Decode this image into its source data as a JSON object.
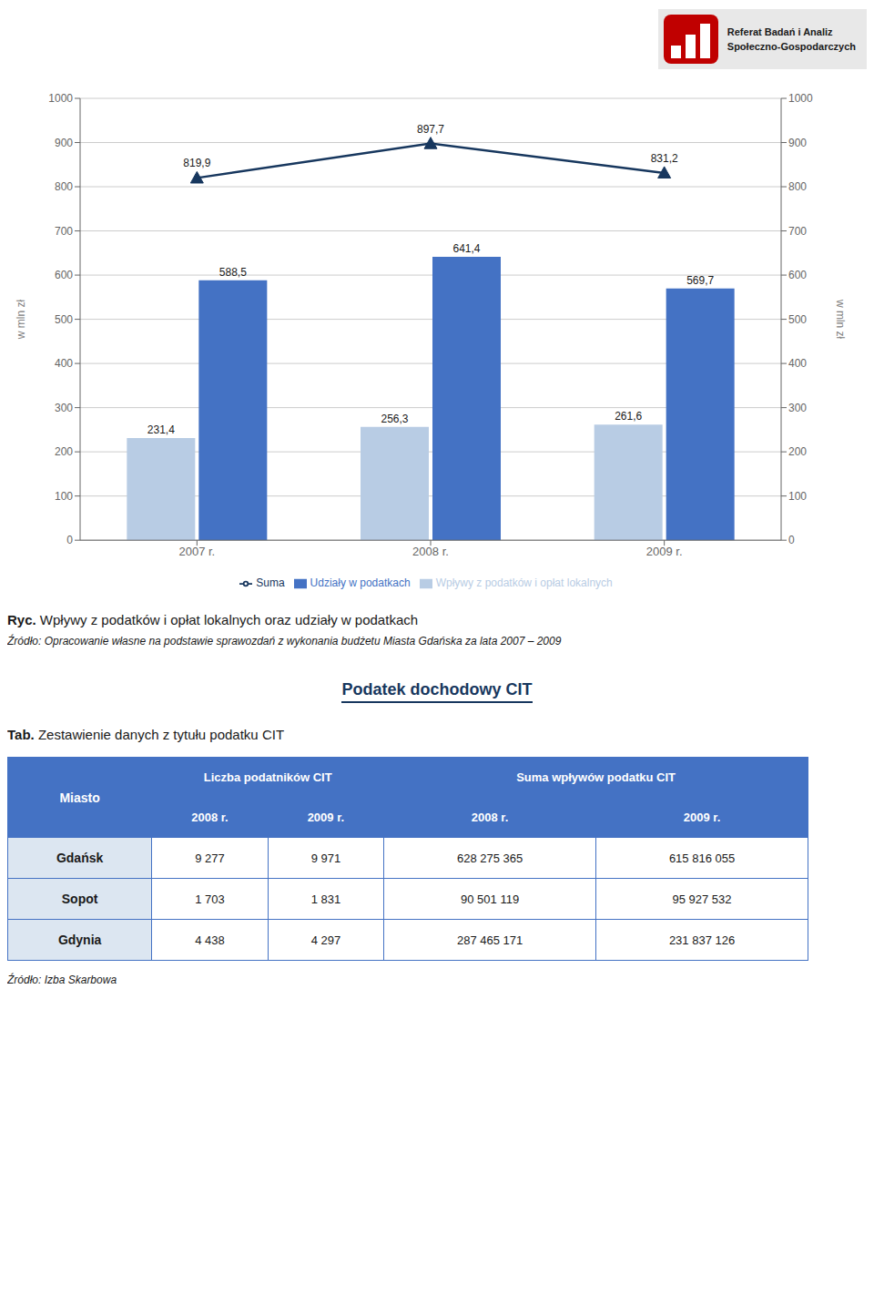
{
  "chart_data": {
    "type": "bar",
    "categories": [
      "2007 r.",
      "2008 r.",
      "2009 r."
    ],
    "series": [
      {
        "name": "Wpływy z podatków i opłat lokalnych",
        "type": "bar",
        "color": "#b8cce4",
        "values": [
          231.4,
          256.3,
          261.6
        ],
        "value_labels": [
          "231,4",
          "256,3",
          "261,6"
        ]
      },
      {
        "name": "Udziały w podatkach",
        "type": "bar",
        "color": "#4472c4",
        "values": [
          588.5,
          641.4,
          569.7
        ],
        "value_labels": [
          "588,5",
          "641,4",
          "569,7"
        ]
      },
      {
        "name": "Suma",
        "type": "line",
        "axis": "y2",
        "marker": "triangle",
        "color": "#17375e",
        "values": [
          819.9,
          897.7,
          831.2
        ],
        "value_labels": [
          "819,9",
          "897,7",
          "831,2"
        ]
      }
    ],
    "ylabel": "w mln zł",
    "y2label": "w mln zł",
    "ylim": [
      0,
      1000
    ],
    "yticks": [
      0,
      100,
      200,
      300,
      400,
      500,
      600,
      700,
      800,
      900,
      1000
    ],
    "y2lim": [
      0,
      1000
    ],
    "y2ticks": [
      0,
      100,
      200,
      300,
      400,
      500,
      600,
      700,
      800,
      900,
      1000
    ],
    "grid": true,
    "legend": "bottom",
    "data_labels": true
  },
  "caption": {
    "label": "Ryc.",
    "text": "Wpływy z podatków i opłat lokalnych oraz udziały w podatkach"
  },
  "source": "Źródło: Opracowanie własne na podstawie sprawozdań z wykonania budżetu Miasta Gdańska za lata 2007 – 2009",
  "section_title": "Podatek dochodowy CIT",
  "table": {
    "label": "Tab.",
    "text": "Zestawienie danych z tytułu podatku CIT",
    "header_first": "Miasto",
    "groups": [
      "Liczba podatników CIT",
      "Suma wpływów podatku CIT"
    ],
    "subheaders": [
      "2008 r.",
      "2009 r."
    ],
    "rows": [
      {
        "name": "Gdańsk",
        "values": [
          "9 277",
          "9 971",
          "628 275 365",
          "615 816 055"
        ]
      },
      {
        "name": "Sopot",
        "values": [
          "1 703",
          "1 831",
          "90 501 119",
          "95 927 532"
        ]
      },
      {
        "name": "Gdynia",
        "values": [
          "4 438",
          "4 297",
          "287 465 171",
          "231 837 126"
        ]
      }
    ],
    "source": "Źródło: Izba Skarbowa",
    "header_color": "#4472c4",
    "row_label_color": "#dce6f1",
    "border_color": "#4472c4"
  },
  "logo": {
    "lines": [
      "Referat Badań i Analiz",
      "Społeczno-Gospodarczych"
    ],
    "color": "#c00000"
  }
}
